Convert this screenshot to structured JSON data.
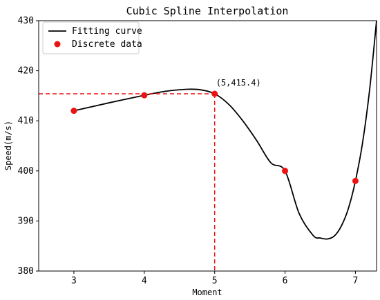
{
  "chart_data": {
    "type": "line",
    "title": "Cubic Spline Interpolation",
    "xlabel": "Moment",
    "ylabel": "Speed(m/s)",
    "xlim": [
      2.5,
      7.3
    ],
    "ylim": [
      380,
      430
    ],
    "xticks": [
      3,
      4,
      5,
      6,
      7
    ],
    "yticks": [
      380,
      390,
      400,
      410,
      420,
      430
    ],
    "grid": false,
    "legend_position": "top-left",
    "series": [
      {
        "name": "Fitting curve",
        "kind": "line",
        "color": "#000000",
        "x": [
          3,
          3.5,
          4,
          4.3,
          4.6,
          4.8,
          5,
          5.2,
          5.4,
          5.6,
          5.8,
          6,
          6.2,
          6.4,
          6.5,
          6.6,
          6.7,
          6.8,
          6.9,
          7,
          7.1,
          7.2,
          7.3
        ],
        "y": [
          412,
          413.6,
          415.1,
          415.9,
          416.3,
          416.2,
          415.4,
          413.3,
          410.0,
          406.0,
          401.6,
          400.0,
          391.5,
          387.1,
          386.6,
          386.4,
          387.0,
          389.0,
          392.5,
          398.0,
          405.5,
          416.0,
          430.0
        ]
      },
      {
        "name": "Discrete data",
        "kind": "scatter",
        "color": "#ee1111",
        "x": [
          3,
          4,
          5,
          6,
          7
        ],
        "y": [
          412,
          415.1,
          415.4,
          400.0,
          398.0
        ]
      }
    ],
    "annotations": [
      {
        "text": "(5,415.4)",
        "x": 5,
        "y": 415.4
      }
    ],
    "reference_lines": {
      "x": 5,
      "y": 415.4,
      "color": "#ee1111",
      "style": "dashed"
    }
  }
}
